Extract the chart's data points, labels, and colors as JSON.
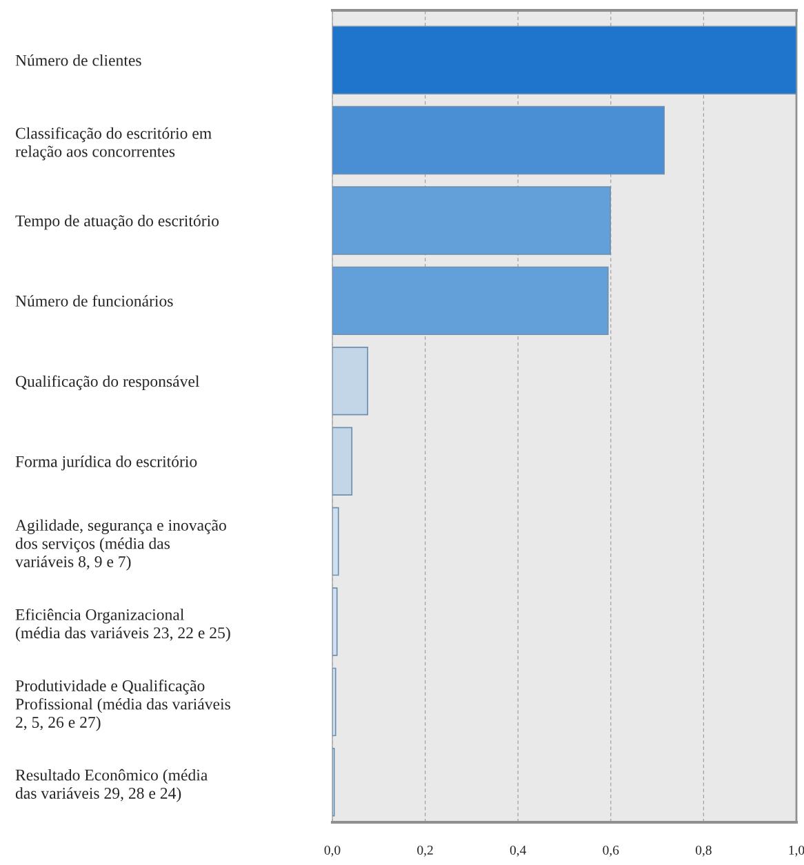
{
  "chart_data": {
    "type": "bar",
    "orientation": "horizontal",
    "categories": [
      "Número de clientes",
      "Classificação do escritório em\nrelação aos concorrentes",
      "Tempo de atuação do escritório",
      "Número de funcionários",
      "Qualificação do responsável",
      "Forma jurídica do escritório",
      "Agilidade, segurança e inovação\ndos serviços (média das\nvariáveis 8, 9 e 7)",
      "Eficiência Organizacional\n(média das variáveis 23, 22 e 25)",
      "Produtividade e Qualificação\nProfissional (média das variáveis\n2, 5, 26 e 27)",
      "Resultado Econômico (média\ndas variáveis 29, 28 e 24)"
    ],
    "values": [
      1.0,
      0.715,
      0.599,
      0.594,
      0.076,
      0.042,
      0.013,
      0.01,
      0.007,
      0.004
    ],
    "colors": [
      "#1f74cc",
      "#4a8fd4",
      "#639fd8",
      "#639fd8",
      "#c3d6e8",
      "#c3d6e8",
      "#d0e0ee",
      "#d0e0ee",
      "#d0e0ee",
      "#d0e0ee"
    ],
    "xlim": [
      0,
      1.0
    ],
    "xticks": [
      {
        "value": 0,
        "label": "0,0"
      },
      {
        "value": 0.2,
        "label": "0,2"
      },
      {
        "value": 0.4,
        "label": "0,4"
      },
      {
        "value": 0.6,
        "label": "0,6"
      },
      {
        "value": 0.8,
        "label": "0,8"
      },
      {
        "value": 1.0,
        "label": "1,0"
      }
    ],
    "grid": "x"
  }
}
